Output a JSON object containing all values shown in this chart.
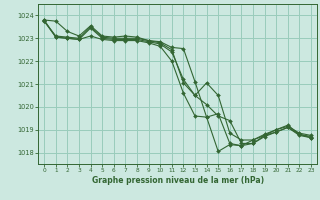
{
  "background_color": "#cce8e0",
  "grid_color": "#99ccbb",
  "line_color": "#336633",
  "title": "Graphe pression niveau de la mer (hPa)",
  "xlim": [
    -0.5,
    23.5
  ],
  "ylim": [
    1017.5,
    1024.5
  ],
  "yticks": [
    1018,
    1019,
    1020,
    1021,
    1022,
    1023,
    1024
  ],
  "xticks": [
    0,
    1,
    2,
    3,
    4,
    5,
    6,
    7,
    8,
    9,
    10,
    11,
    12,
    13,
    14,
    15,
    16,
    17,
    18,
    19,
    20,
    21,
    22,
    23
  ],
  "lines": [
    {
      "x": [
        0,
        1,
        2,
        3,
        4,
        5,
        6,
        7,
        8,
        9,
        10,
        11,
        12,
        13,
        14,
        15,
        16,
        17,
        18,
        19,
        20,
        21,
        22,
        23
      ],
      "y": [
        1023.8,
        1023.75,
        1023.3,
        1023.1,
        1023.55,
        1023.1,
        1023.05,
        1023.1,
        1023.05,
        1022.9,
        1022.85,
        1022.6,
        1022.55,
        1021.1,
        1019.55,
        1018.05,
        1018.35,
        1018.3,
        1018.55,
        1018.8,
        1019.0,
        1019.15,
        1018.85,
        1018.75
      ]
    },
    {
      "x": [
        0,
        1,
        2,
        3,
        4,
        5,
        6,
        7,
        8,
        9,
        10,
        11,
        12,
        13,
        14,
        15,
        16,
        17,
        18,
        19,
        20,
        21,
        22,
        23
      ],
      "y": [
        1023.75,
        1023.1,
        1023.05,
        1023.0,
        1023.5,
        1023.05,
        1023.0,
        1023.0,
        1023.0,
        1022.9,
        1022.8,
        1022.5,
        1021.05,
        1020.5,
        1021.05,
        1020.5,
        1018.85,
        1018.55,
        1018.55,
        1018.75,
        1019.0,
        1019.2,
        1018.8,
        1018.7
      ]
    },
    {
      "x": [
        0,
        1,
        2,
        3,
        4,
        5,
        6,
        7,
        8,
        9,
        10,
        11,
        12,
        13,
        14,
        15,
        16,
        17,
        18,
        19,
        20,
        21,
        22,
        23
      ],
      "y": [
        1023.75,
        1023.05,
        1023.0,
        1022.95,
        1023.45,
        1023.0,
        1022.95,
        1022.95,
        1022.95,
        1022.85,
        1022.75,
        1022.4,
        1021.2,
        1020.5,
        1020.1,
        1019.6,
        1019.4,
        1018.4,
        1018.4,
        1018.7,
        1018.9,
        1019.1,
        1018.75,
        1018.65
      ]
    },
    {
      "x": [
        0,
        1,
        2,
        3,
        4,
        5,
        6,
        7,
        8,
        9,
        10,
        11,
        12,
        13,
        14,
        15,
        16,
        17,
        18,
        19,
        20,
        21,
        22,
        23
      ],
      "y": [
        1023.8,
        1023.05,
        1023.0,
        1022.95,
        1023.1,
        1022.95,
        1022.9,
        1022.9,
        1022.9,
        1022.8,
        1022.65,
        1022.0,
        1020.6,
        1019.6,
        1019.55,
        1019.7,
        1018.4,
        1018.3,
        1018.4,
        1018.75,
        1018.9,
        1019.1,
        1018.8,
        1018.65
      ]
    }
  ]
}
